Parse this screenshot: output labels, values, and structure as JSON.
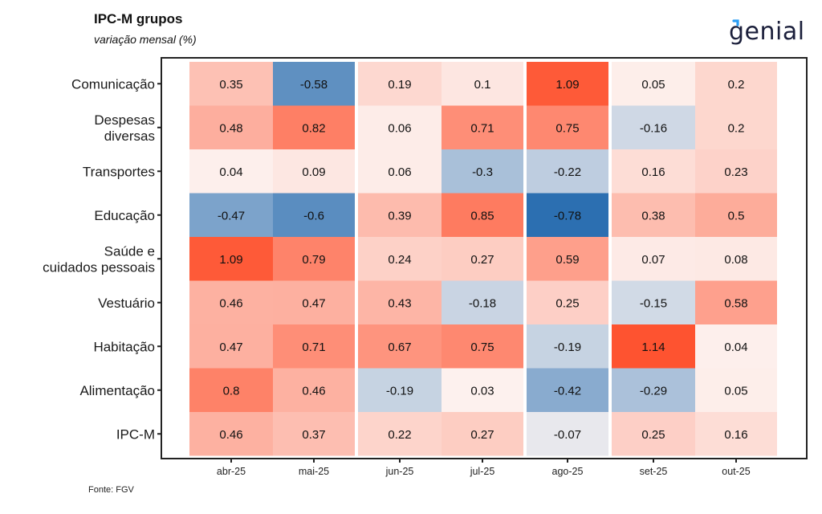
{
  "header": {
    "title": "IPC-M grupos",
    "subtitle": "variação mensal (%)",
    "logo_text": "genial"
  },
  "footer": {
    "source": "Fonte: FGV"
  },
  "colors": {
    "negative_max": "#2c6fb1",
    "neutral": "#fdf6f4",
    "positive_max": "#fe5330",
    "frame": "#222222"
  },
  "chart_data": {
    "type": "heatmap",
    "title": "IPC-M grupos",
    "subtitle": "variação mensal (%)",
    "xlabel": "",
    "ylabel": "",
    "x_categories": [
      "abr-25",
      "mai-25",
      "jun-25",
      "jul-25",
      "ago-25",
      "set-25",
      "out-25"
    ],
    "y_categories": [
      {
        "lines": [
          "Comunicação"
        ]
      },
      {
        "lines": [
          "Despesas",
          "diversas"
        ]
      },
      {
        "lines": [
          "Transportes"
        ]
      },
      {
        "lines": [
          "Educação"
        ]
      },
      {
        "lines": [
          "Saúde e",
          "cuidados pessoais"
        ]
      },
      {
        "lines": [
          "Vestuário"
        ]
      },
      {
        "lines": [
          "Habitação"
        ]
      },
      {
        "lines": [
          "Alimentação"
        ]
      },
      {
        "lines": [
          "IPC-M"
        ]
      }
    ],
    "values": [
      [
        0.35,
        -0.58,
        0.19,
        0.1,
        1.09,
        0.05,
        0.2
      ],
      [
        0.48,
        0.82,
        0.06,
        0.71,
        0.75,
        -0.16,
        0.2
      ],
      [
        0.04,
        0.09,
        0.06,
        -0.3,
        -0.22,
        0.16,
        0.23
      ],
      [
        -0.47,
        -0.6,
        0.39,
        0.85,
        -0.78,
        0.38,
        0.5
      ],
      [
        1.09,
        0.79,
        0.24,
        0.27,
        0.59,
        0.07,
        0.08
      ],
      [
        0.46,
        0.47,
        0.43,
        -0.18,
        0.25,
        -0.15,
        0.58
      ],
      [
        0.47,
        0.71,
        0.67,
        0.75,
        -0.19,
        1.14,
        0.04
      ],
      [
        0.8,
        0.46,
        -0.19,
        0.03,
        -0.42,
        -0.29,
        0.05
      ],
      [
        0.46,
        0.37,
        0.22,
        0.27,
        -0.07,
        0.25,
        0.16
      ]
    ],
    "color_scale": {
      "low": -0.78,
      "mid": 0,
      "high": 1.14
    },
    "legend": "none",
    "grid": false
  }
}
